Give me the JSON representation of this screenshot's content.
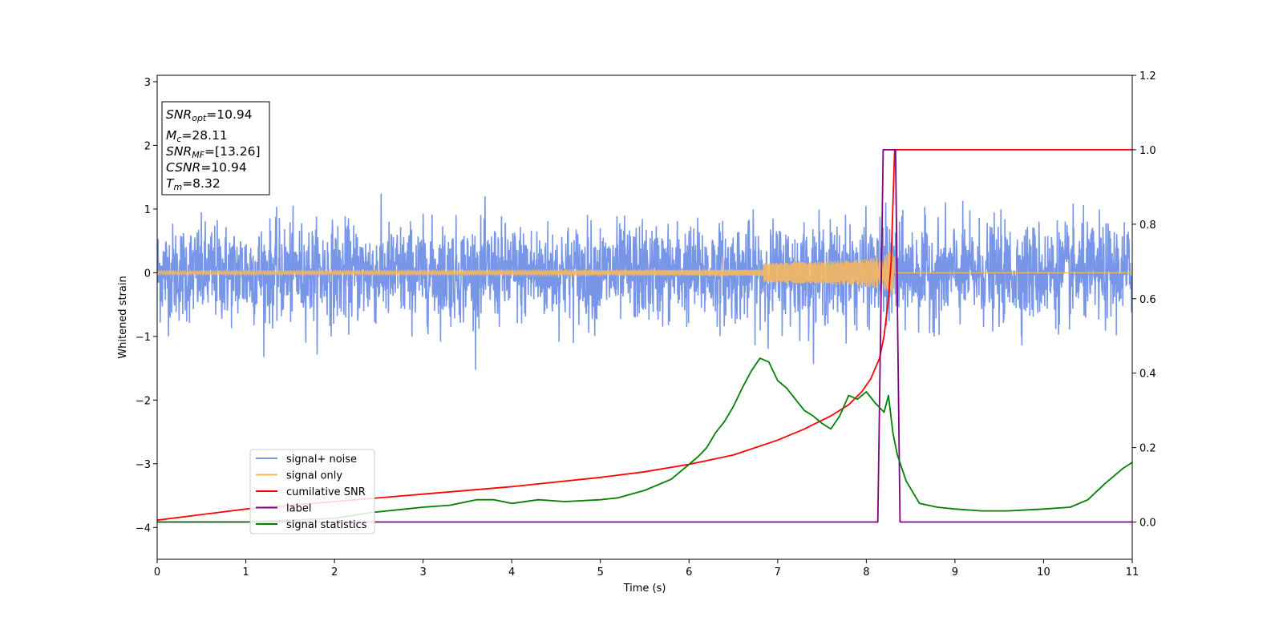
{
  "chart_data": {
    "type": "line",
    "xlabel": "Time (s)",
    "ylabel": "Whitened strain",
    "xlim": [
      0,
      11
    ],
    "ylim_left": [
      -4.5,
      3.1
    ],
    "ylim_right": [
      -0.1,
      1.2
    ],
    "x_ticks": [
      "0",
      "1",
      "2",
      "3",
      "4",
      "5",
      "6",
      "7",
      "8",
      "9",
      "10",
      "11"
    ],
    "y_ticks_left": [
      "3",
      "2",
      "1",
      "0",
      "−1",
      "−2",
      "−3",
      "−4"
    ],
    "y_ticks_right": [
      "1.2",
      "1.0",
      "0.8",
      "0.6",
      "0.4",
      "0.2",
      "0.0"
    ],
    "grid": false,
    "legend_position": "lower-left",
    "annotation": {
      "lines": [
        {
          "base": "SNR",
          "sub": "opt",
          "value": "=10.94"
        },
        {
          "base": "M",
          "sub": "c",
          "value": "=28.11"
        },
        {
          "base": "SNR",
          "sub": "MF",
          "value": "=[13.26]"
        },
        {
          "base": "CSNR",
          "sub": "",
          "value": "=10.94"
        },
        {
          "base": "T",
          "sub": "m",
          "value": "=8.32"
        }
      ]
    },
    "series": [
      {
        "name": "signal+ noise",
        "color": "#7896e8",
        "axis": "left",
        "kind": "noise",
        "noise_std": 0.38,
        "x_range": [
          0,
          11
        ]
      },
      {
        "name": "signal only",
        "color": "#f5b860",
        "axis": "left",
        "kind": "chirp",
        "merger_time": 8.32,
        "peak_amplitude": 0.45
      },
      {
        "name": "cumilative SNR",
        "color": "#ff0000",
        "axis": "right",
        "x": [
          0,
          1,
          2,
          3,
          4,
          5,
          5.5,
          6,
          6.5,
          7,
          7.3,
          7.6,
          7.8,
          7.95,
          8.05,
          8.15,
          8.2,
          8.25,
          8.28,
          8.3,
          8.32,
          11
        ],
        "y": [
          0.005,
          0.035,
          0.055,
          0.075,
          0.095,
          0.12,
          0.135,
          0.155,
          0.18,
          0.22,
          0.25,
          0.285,
          0.315,
          0.35,
          0.385,
          0.44,
          0.5,
          0.6,
          0.7,
          0.85,
          1.0,
          1.0
        ]
      },
      {
        "name": "label",
        "color": "#800080",
        "axis": "right",
        "x": [
          0,
          8.13,
          8.19,
          8.33,
          8.38,
          11
        ],
        "y": [
          0.0,
          0.0,
          1.0,
          1.0,
          0.0,
          0.0
        ]
      },
      {
        "name": "signal statistics",
        "color": "#008000",
        "axis": "right",
        "x": [
          0,
          1,
          1.5,
          2,
          2.4,
          3,
          3.3,
          3.6,
          3.8,
          4.0,
          4.3,
          4.6,
          5.0,
          5.2,
          5.5,
          5.8,
          5.9,
          6.0,
          6.1,
          6.2,
          6.3,
          6.4,
          6.5,
          6.6,
          6.7,
          6.8,
          6.9,
          7.0,
          7.1,
          7.2,
          7.3,
          7.4,
          7.5,
          7.6,
          7.7,
          7.8,
          7.9,
          8.0,
          8.1,
          8.2,
          8.25,
          8.3,
          8.35,
          8.45,
          8.6,
          8.8,
          9.0,
          9.3,
          9.6,
          10.0,
          10.3,
          10.5,
          10.7,
          10.9,
          11.0
        ],
        "y": [
          0.0,
          0.0,
          0.005,
          0.01,
          0.025,
          0.04,
          0.045,
          0.06,
          0.06,
          0.05,
          0.06,
          0.055,
          0.06,
          0.065,
          0.085,
          0.115,
          0.135,
          0.155,
          0.175,
          0.2,
          0.24,
          0.27,
          0.31,
          0.36,
          0.405,
          0.44,
          0.43,
          0.38,
          0.36,
          0.33,
          0.3,
          0.285,
          0.265,
          0.25,
          0.285,
          0.34,
          0.33,
          0.35,
          0.32,
          0.295,
          0.34,
          0.24,
          0.18,
          0.11,
          0.05,
          0.04,
          0.035,
          0.03,
          0.03,
          0.035,
          0.04,
          0.06,
          0.105,
          0.145,
          0.16
        ]
      }
    ]
  }
}
